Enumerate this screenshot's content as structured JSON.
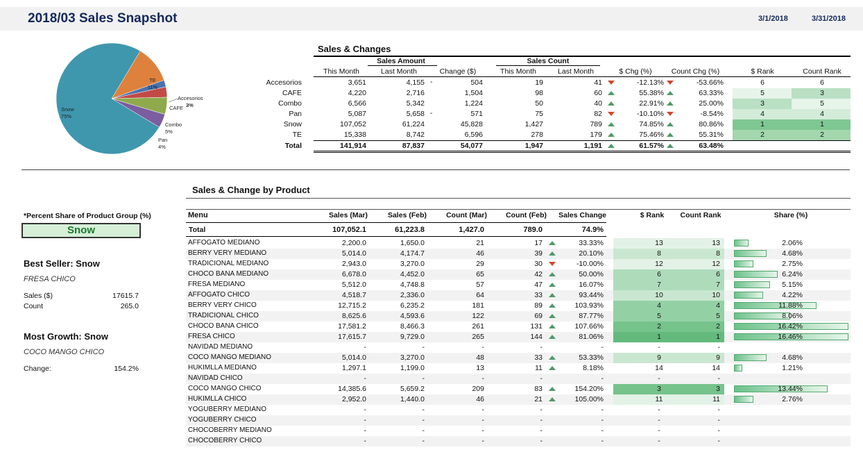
{
  "header": {
    "title": "2018/03 Sales Snapshot",
    "start_date": "3/1/2018",
    "end_date": "3/31/2018"
  },
  "pie": {
    "labels": [
      {
        "name": "TE",
        "pct": "11%"
      },
      {
        "name": "Accesorios",
        "pct": "2%"
      },
      {
        "name": "CAFE",
        "pct": "3%"
      },
      {
        "name": "Combo",
        "pct": "5%"
      },
      {
        "name": "Pan",
        "pct": "4%"
      },
      {
        "name": "Snow",
        "pct": "75%"
      }
    ],
    "slices": [
      {
        "name": "Snow",
        "value": 75,
        "color": "#3f97ad"
      },
      {
        "name": "TE",
        "value": 11,
        "color": "#dd813d"
      },
      {
        "name": "Accesorios",
        "value": 2,
        "color": "#4a72b0"
      },
      {
        "name": "CAFE",
        "value": 3,
        "color": "#c24a45"
      },
      {
        "name": "Combo",
        "value": 5,
        "color": "#8faa4d"
      },
      {
        "name": "Pan",
        "value": 4,
        "color": "#7b5da0"
      }
    ]
  },
  "sales_changes": {
    "title": "Sales & Changes",
    "group_sales_amount": "Sales Amount",
    "group_sales_count": "Sales Count",
    "columns": [
      "This Month",
      "Last Month",
      "Change ($)",
      "This Month",
      "Last Month",
      "$ Chg (%)",
      "Count Chg (%)",
      "$ Rank",
      "Count Rank"
    ],
    "rows": [
      {
        "name": "Accesorios",
        "tm": "3,651",
        "lm": "4,155",
        "sign": "-",
        "chg": "504",
        "ctm": "19",
        "clm": "41",
        "d1": "dn",
        "pchg": "-12.13%",
        "d2": "dn",
        "cchg": "-53.66%",
        "srank": "6",
        "crank": "6",
        "s_lvl": 0,
        "c_lvl": 0
      },
      {
        "name": "CAFE",
        "tm": "4,220",
        "lm": "2,716",
        "sign": "",
        "chg": "1,504",
        "ctm": "98",
        "clm": "60",
        "d1": "up",
        "pchg": "55.38%",
        "d2": "up",
        "cchg": "63.33%",
        "srank": "5",
        "crank": "3",
        "s_lvl": 1,
        "c_lvl": 3
      },
      {
        "name": "Combo",
        "tm": "6,566",
        "lm": "5,342",
        "sign": "",
        "chg": "1,224",
        "ctm": "50",
        "clm": "40",
        "d1": "up",
        "pchg": "22.91%",
        "d2": "up",
        "cchg": "25.00%",
        "srank": "3",
        "crank": "5",
        "s_lvl": 3,
        "c_lvl": 1
      },
      {
        "name": "Pan",
        "tm": "5,087",
        "lm": "5,658",
        "sign": "-",
        "chg": "571",
        "ctm": "75",
        "clm": "82",
        "d1": "dn",
        "pchg": "-10.10%",
        "d2": "dn",
        "cchg": "-8.54%",
        "srank": "4",
        "crank": "4",
        "s_lvl": 2,
        "c_lvl": 2
      },
      {
        "name": "Snow",
        "tm": "107,052",
        "lm": "61,224",
        "sign": "",
        "chg": "45,828",
        "ctm": "1,427",
        "clm": "789",
        "d1": "up",
        "pchg": "74.85%",
        "d2": "up",
        "cchg": "80.86%",
        "srank": "1",
        "crank": "1",
        "s_lvl": 5,
        "c_lvl": 5
      },
      {
        "name": "TE",
        "tm": "15,338",
        "lm": "8,742",
        "sign": "",
        "chg": "6,596",
        "ctm": "278",
        "clm": "179",
        "d1": "up",
        "pchg": "75.46%",
        "d2": "up",
        "cchg": "55.31%",
        "srank": "2",
        "crank": "2",
        "s_lvl": 4,
        "c_lvl": 4
      }
    ],
    "total": {
      "name": "Total",
      "tm": "141,914",
      "lm": "87,837",
      "chg": "54,077",
      "ctm": "1,947",
      "clm": "1,191",
      "pchg": "61.57%",
      "cchg": "63.48%"
    }
  },
  "left_panel": {
    "share_label": "*Percent Share of Product Group (%)",
    "selected_group": "Snow",
    "best_seller_title": "Best Seller: Snow",
    "best_seller_item": "FRESA CHICO",
    "sales_label": "Sales ($)",
    "sales_value": "17615.7",
    "count_label": "Count",
    "count_value": "265.0",
    "most_growth_title": "Most Growth: Snow",
    "most_growth_item": "COCO MANGO CHICO",
    "change_label": "Change:",
    "change_value": "154.2%"
  },
  "products": {
    "title": "Sales & Change by Product",
    "columns": [
      "Menu",
      "Sales (Mar)",
      "Sales (Feb)",
      "Count (Mar)",
      "Count (Feb)",
      "Sales Change",
      "$ Rank",
      "Count Rank",
      "Share (%)"
    ],
    "total": {
      "name": "Total",
      "smar": "107,052.1",
      "sfeb": "61,223.8",
      "cmar": "1,427.0",
      "cfeb": "789.0",
      "chg": "74.9%"
    },
    "rows": [
      {
        "name": "AFFOGATO MEDIANO",
        "smar": "2,200.0",
        "sfeb": "1,650.0",
        "cmar": "21",
        "cfeb": "17",
        "dir": "up",
        "chg": "33.33%",
        "srank": "13",
        "crank": "13",
        "share": "2.06%",
        "share_val": 2.06,
        "lvl": 1
      },
      {
        "name": "BERRY VERY MEDIANO",
        "smar": "5,014.0",
        "sfeb": "4,174.7",
        "cmar": "46",
        "cfeb": "39",
        "dir": "up",
        "chg": "20.10%",
        "srank": "8",
        "crank": "8",
        "share": "4.68%",
        "share_val": 4.68,
        "lvl": 2
      },
      {
        "name": "TRADICIONAL MEDIANO",
        "smar": "2,943.0",
        "sfeb": "3,270.0",
        "cmar": "29",
        "cfeb": "30",
        "dir": "dn",
        "chg": "-10.00%",
        "srank": "12",
        "crank": "12",
        "share": "2.75%",
        "share_val": 2.75,
        "lvl": 1
      },
      {
        "name": "CHOCO BANA MEDIANO",
        "smar": "6,678.0",
        "sfeb": "4,452.0",
        "cmar": "65",
        "cfeb": "42",
        "dir": "up",
        "chg": "50.00%",
        "srank": "6",
        "crank": "6",
        "share": "6.24%",
        "share_val": 6.24,
        "lvl": 3
      },
      {
        "name": "FRESA MEDIANO",
        "smar": "5,512.0",
        "sfeb": "4,748.8",
        "cmar": "57",
        "cfeb": "47",
        "dir": "up",
        "chg": "16.07%",
        "srank": "7",
        "crank": "7",
        "share": "5.15%",
        "share_val": 5.15,
        "lvl": 3
      },
      {
        "name": "AFFOGATO CHICO",
        "smar": "4,518.7",
        "sfeb": "2,336.0",
        "cmar": "64",
        "cfeb": "33",
        "dir": "up",
        "chg": "93.44%",
        "srank": "10",
        "crank": "10",
        "share": "4.22%",
        "share_val": 4.22,
        "lvl": 2
      },
      {
        "name": "BERRY VERY CHICO",
        "smar": "12,715.2",
        "sfeb": "6,235.2",
        "cmar": "181",
        "cfeb": "89",
        "dir": "up",
        "chg": "103.93%",
        "srank": "4",
        "crank": "4",
        "share": "11.88%",
        "share_val": 11.88,
        "lvl": 4
      },
      {
        "name": "TRADICIONAL CHICO",
        "smar": "8,625.6",
        "sfeb": "4,593.6",
        "cmar": "122",
        "cfeb": "69",
        "dir": "up",
        "chg": "87.77%",
        "srank": "5",
        "crank": "5",
        "share": "8.06%",
        "share_val": 8.06,
        "lvl": 4
      },
      {
        "name": "CHOCO BANA CHICO",
        "smar": "17,581.2",
        "sfeb": "8,466.3",
        "cmar": "261",
        "cfeb": "131",
        "dir": "up",
        "chg": "107.66%",
        "srank": "2",
        "crank": "2",
        "share": "16.42%",
        "share_val": 16.42,
        "lvl": 5
      },
      {
        "name": "FRESA CHICO",
        "smar": "17,615.7",
        "sfeb": "9,729.0",
        "cmar": "265",
        "cfeb": "144",
        "dir": "up",
        "chg": "81.06%",
        "srank": "1",
        "crank": "1",
        "share": "16.46%",
        "share_val": 16.46,
        "lvl": 6
      },
      {
        "name": "NAVIDAD MEDIANO",
        "smar": "-",
        "sfeb": "-",
        "cmar": "-",
        "cfeb": "-",
        "dir": "",
        "chg": "-",
        "srank": "-",
        "crank": "-",
        "share": "",
        "share_val": 0,
        "lvl": 0
      },
      {
        "name": "COCO MANGO MEDIANO",
        "smar": "5,014.0",
        "sfeb": "3,270.0",
        "cmar": "48",
        "cfeb": "33",
        "dir": "up",
        "chg": "53.33%",
        "srank": "9",
        "crank": "9",
        "share": "4.68%",
        "share_val": 4.68,
        "lvl": 2
      },
      {
        "name": "HUKIMLLA MEDIANO",
        "smar": "1,297.1",
        "sfeb": "1,199.0",
        "cmar": "13",
        "cfeb": "11",
        "dir": "up",
        "chg": "8.18%",
        "srank": "14",
        "crank": "14",
        "share": "1.21%",
        "share_val": 1.21,
        "lvl": 0
      },
      {
        "name": "NAVIDAD CHICO",
        "smar": "-",
        "sfeb": "-",
        "cmar": "-",
        "cfeb": "-",
        "dir": "",
        "chg": "-",
        "srank": "-",
        "crank": "-",
        "share": "",
        "share_val": 0,
        "lvl": 0
      },
      {
        "name": "COCO MANGO CHICO",
        "smar": "14,385.6",
        "sfeb": "5,659.2",
        "cmar": "209",
        "cfeb": "83",
        "dir": "up",
        "chg": "154.20%",
        "srank": "3",
        "crank": "3",
        "share": "13.44%",
        "share_val": 13.44,
        "lvl": 5
      },
      {
        "name": "HUKIMLLA CHICO",
        "smar": "2,952.0",
        "sfeb": "1,440.0",
        "cmar": "46",
        "cfeb": "21",
        "dir": "up",
        "chg": "105.00%",
        "srank": "11",
        "crank": "11",
        "share": "2.76%",
        "share_val": 2.76,
        "lvl": 1
      },
      {
        "name": "YOGUBERRY MEDIANO",
        "smar": "-",
        "sfeb": "-",
        "cmar": "-",
        "cfeb": "-",
        "dir": "",
        "chg": "-",
        "srank": "-",
        "crank": "-",
        "share": "",
        "share_val": 0,
        "lvl": 0
      },
      {
        "name": "YOGUBERRY CHICO",
        "smar": "-",
        "sfeb": "-",
        "cmar": "-",
        "cfeb": "-",
        "dir": "",
        "chg": "-",
        "srank": "-",
        "crank": "-",
        "share": "",
        "share_val": 0,
        "lvl": 0
      },
      {
        "name": "CHOCOBERRY MEDIANO",
        "smar": "-",
        "sfeb": "-",
        "cmar": "-",
        "cfeb": "-",
        "dir": "",
        "chg": "-",
        "srank": "-",
        "crank": "-",
        "share": "",
        "share_val": 0,
        "lvl": 0
      },
      {
        "name": "CHOCOBERRY CHICO",
        "smar": "-",
        "sfeb": "-",
        "cmar": "-",
        "cfeb": "-",
        "dir": "",
        "chg": "-",
        "srank": "-",
        "crank": "-",
        "share": "",
        "share_val": 0,
        "lvl": 0
      }
    ]
  }
}
